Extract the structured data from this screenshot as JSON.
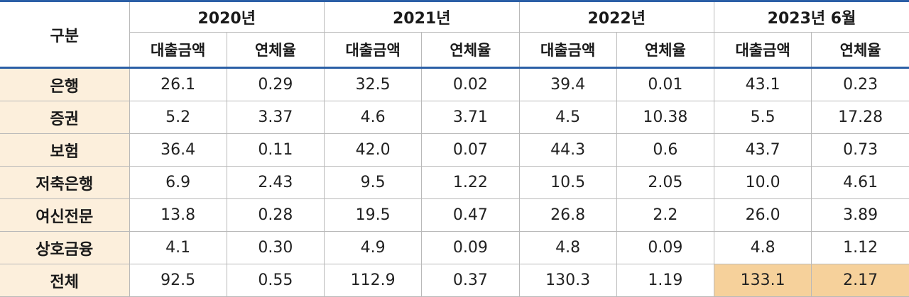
{
  "header": {
    "category_label": "구분",
    "years": [
      "2020년",
      "2021년",
      "2022년",
      "2023년 6월"
    ],
    "sub_labels": [
      "대출금액",
      "연체율",
      "대출금액",
      "연체율",
      "대출금액",
      "연체율",
      "대출금액",
      "연체율"
    ]
  },
  "rows": [
    {
      "label": "은행",
      "values": [
        "26.1",
        "0.29",
        "32.5",
        "0.02",
        "39.4",
        "0.01",
        "43.1",
        "0.23"
      ]
    },
    {
      "label": "증권",
      "values": [
        "5.2",
        "3.37",
        "4.6",
        "3.71",
        "4.5",
        "10.38",
        "5.5",
        "17.28"
      ]
    },
    {
      "label": "보험",
      "values": [
        "36.4",
        "0.11",
        "42.0",
        "0.07",
        "44.3",
        "0.6",
        "43.7",
        "0.73"
      ]
    },
    {
      "label": "저축은행",
      "values": [
        "6.9",
        "2.43",
        "9.5",
        "1.22",
        "10.5",
        "2.05",
        "10.0",
        "4.61"
      ]
    },
    {
      "label": "여신전문",
      "values": [
        "13.8",
        "0.28",
        "19.5",
        "0.47",
        "26.8",
        "2.2",
        "26.0",
        "3.89"
      ]
    },
    {
      "label": "상호금융",
      "values": [
        "4.1",
        "0.30",
        "4.9",
        "0.09",
        "4.8",
        "0.09",
        "4.8",
        "1.12"
      ]
    },
    {
      "label": "전체",
      "values": [
        "92.5",
        "0.55",
        "112.9",
        "0.37",
        "130.3",
        "1.19",
        "133.1",
        "2.17"
      ]
    }
  ],
  "colors": {
    "header_rule": "#2b5fa6",
    "category_fill": "#fcefdc",
    "highlight_fill": "#f6d19b",
    "grid_line": "#b9b9b9"
  }
}
